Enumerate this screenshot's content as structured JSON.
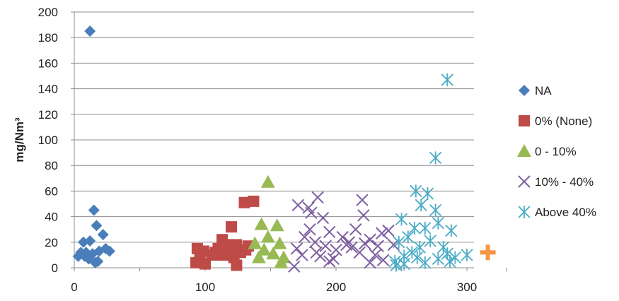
{
  "chart_data": {
    "type": "scatter",
    "title": "",
    "xlabel": "",
    "ylabel": "mg/Nm³",
    "xlim": [
      0,
      300
    ],
    "ylim": [
      0,
      200
    ],
    "x_ticks": [
      0,
      100,
      200,
      300
    ],
    "y_ticks": [
      0,
      20,
      40,
      60,
      80,
      100,
      120,
      140,
      160,
      180,
      200
    ],
    "grid": "horizontal",
    "legend_position": "right",
    "series": [
      {
        "name": "NA",
        "marker": "diamond",
        "color": "#4a7ebb",
        "points": [
          [
            12,
            185
          ],
          [
            15,
            45
          ],
          [
            17,
            33
          ],
          [
            22,
            26
          ],
          [
            7,
            20
          ],
          [
            12,
            21
          ],
          [
            24,
            15
          ],
          [
            27,
            13
          ],
          [
            5,
            12
          ],
          [
            9,
            12
          ],
          [
            14,
            11
          ],
          [
            19,
            13
          ],
          [
            3,
            9
          ],
          [
            8,
            9
          ],
          [
            11,
            7
          ],
          [
            18,
            5
          ],
          [
            16,
            4
          ]
        ]
      },
      {
        "name": "0% (None)",
        "marker": "square",
        "color": "#be4b48",
        "points": [
          [
            137,
            52
          ],
          [
            130,
            51
          ],
          [
            120,
            32
          ],
          [
            113,
            22
          ],
          [
            117,
            18
          ],
          [
            124,
            18
          ],
          [
            133,
            17
          ],
          [
            115,
            14
          ],
          [
            108,
            12
          ],
          [
            94,
            15
          ],
          [
            99,
            13
          ],
          [
            112,
            10
          ],
          [
            119,
            10
          ],
          [
            122,
            8
          ],
          [
            96,
            7
          ],
          [
            105,
            10
          ],
          [
            127,
            12
          ],
          [
            93,
            4
          ],
          [
            100,
            3
          ],
          [
            124,
            2
          ],
          [
            110,
            15
          ],
          [
            131,
            14
          ]
        ]
      },
      {
        "name": "0 - 10%",
        "marker": "triangle",
        "color": "#98b954",
        "points": [
          [
            148,
            67
          ],
          [
            143,
            34
          ],
          [
            155,
            33
          ],
          [
            148,
            24
          ],
          [
            157,
            19
          ],
          [
            138,
            19
          ],
          [
            145,
            14
          ],
          [
            152,
            11
          ],
          [
            160,
            8
          ],
          [
            141,
            8
          ],
          [
            158,
            4
          ]
        ]
      },
      {
        "name": "10% - 40%",
        "marker": "x",
        "color": "#7d5fa0",
        "points": [
          [
            171,
            49
          ],
          [
            179,
            47
          ],
          [
            186,
            55
          ],
          [
            181,
            43
          ],
          [
            190,
            39
          ],
          [
            220,
            53
          ],
          [
            221,
            41
          ],
          [
            215,
            30
          ],
          [
            205,
            24
          ],
          [
            195,
            28
          ],
          [
            210,
            20
          ],
          [
            226,
            22
          ],
          [
            235,
            27
          ],
          [
            240,
            29
          ],
          [
            176,
            24
          ],
          [
            184,
            20
          ],
          [
            192,
            17
          ],
          [
            200,
            14
          ],
          [
            170,
            15
          ],
          [
            174,
            10
          ],
          [
            188,
            9
          ],
          [
            198,
            7
          ],
          [
            218,
            12
          ],
          [
            230,
            10
          ],
          [
            236,
            6
          ],
          [
            226,
            4
          ],
          [
            212,
            16
          ],
          [
            180,
            30
          ],
          [
            185,
            12
          ],
          [
            195,
            5
          ],
          [
            168,
            1
          ],
          [
            244,
            18
          ],
          [
            232,
            17
          ],
          [
            222,
            19
          ],
          [
            208,
            18
          ]
        ]
      },
      {
        "name": "Above 40%",
        "marker": "asterisk",
        "color": "#4bacc6",
        "points": [
          [
            285,
            147
          ],
          [
            276,
            86
          ],
          [
            261,
            60
          ],
          [
            270,
            58
          ],
          [
            276,
            45
          ],
          [
            265,
            49
          ],
          [
            250,
            38
          ],
          [
            278,
            35
          ],
          [
            260,
            31
          ],
          [
            268,
            31
          ],
          [
            288,
            29
          ],
          [
            255,
            24
          ],
          [
            248,
            20
          ],
          [
            272,
            21
          ],
          [
            264,
            16
          ],
          [
            258,
            12
          ],
          [
            252,
            9
          ],
          [
            282,
            16
          ],
          [
            291,
            8
          ],
          [
            300,
            10
          ],
          [
            278,
            7
          ],
          [
            287,
            5
          ],
          [
            268,
            4
          ],
          [
            252,
            3
          ],
          [
            245,
            5
          ],
          [
            262,
            8
          ],
          [
            285,
            11
          ],
          [
            246,
            2
          ]
        ]
      },
      {
        "name": "",
        "marker": "plus",
        "color": "#f79646",
        "points": [
          [
            316,
            12
          ]
        ]
      }
    ]
  }
}
